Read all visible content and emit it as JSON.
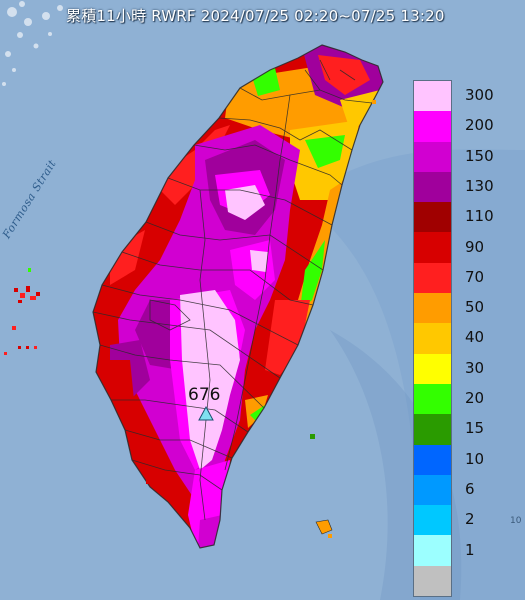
{
  "title": "累積11小時 RWRF 2024/07/25 02:20~07/25 13:20",
  "strait_label": "Formosa Strait",
  "peak": {
    "value": "676",
    "marker": "triangle-marker-icon",
    "marker_color": "#7fe0f0"
  },
  "edge_text": "10",
  "legend": {
    "unit_levels": [
      {
        "label": "300",
        "color": "#ffc4ff"
      },
      {
        "label": "200",
        "color": "#ff00ff"
      },
      {
        "label": "150",
        "color": "#d100d1"
      },
      {
        "label": "130",
        "color": "#a0009c"
      },
      {
        "label": "110",
        "color": "#a00000"
      },
      {
        "label": "90",
        "color": "#d70000"
      },
      {
        "label": "70",
        "color": "#ff1f1f"
      },
      {
        "label": "50",
        "color": "#ff9c00"
      },
      {
        "label": "40",
        "color": "#ffc800"
      },
      {
        "label": "30",
        "color": "#ffff00"
      },
      {
        "label": "20",
        "color": "#33ff00"
      },
      {
        "label": "15",
        "color": "#2a9b00"
      },
      {
        "label": "10",
        "color": "#0066ff"
      },
      {
        "label": "6",
        "color": "#0099ff"
      },
      {
        "label": "2",
        "color": "#00c8ff"
      },
      {
        "label": "1",
        "color": "#9cffff"
      },
      {
        "label": "",
        "color": "#c0c0c0"
      }
    ]
  },
  "colors": {
    "sea": "#8fb1d4",
    "deep_sea": "#6f97c4",
    "border": "#2a2a2a"
  }
}
